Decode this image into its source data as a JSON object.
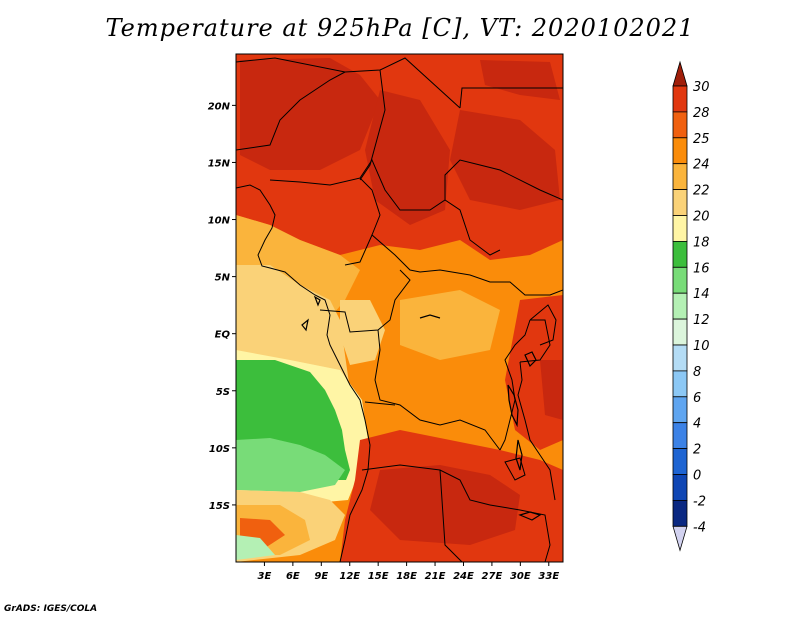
{
  "title": "Temperature at 925hPa [C], VT: 2020102021",
  "credit": "GrADS: IGES/COLA",
  "map": {
    "lon_range": [
      0,
      34.5
    ],
    "lat_range": [
      -20,
      24.5
    ],
    "lon_ticks": [
      {
        "value": 3,
        "label": "3E"
      },
      {
        "value": 6,
        "label": "6E"
      },
      {
        "value": 9,
        "label": "9E"
      },
      {
        "value": 12,
        "label": "12E"
      },
      {
        "value": 15,
        "label": "15E"
      },
      {
        "value": 18,
        "label": "18E"
      },
      {
        "value": 21,
        "label": "21E"
      },
      {
        "value": 24,
        "label": "24E"
      },
      {
        "value": 27,
        "label": "27E"
      },
      {
        "value": 30,
        "label": "30E"
      },
      {
        "value": 33,
        "label": "33E"
      }
    ],
    "lat_ticks": [
      {
        "value": 20,
        "label": "20N"
      },
      {
        "value": 15,
        "label": "15N"
      },
      {
        "value": 10,
        "label": "10N"
      },
      {
        "value": 5,
        "label": "5N"
      },
      {
        "value": 0,
        "label": "EQ"
      },
      {
        "value": -5,
        "label": "5S"
      },
      {
        "value": -10,
        "label": "10S"
      },
      {
        "value": -15,
        "label": "15S"
      }
    ]
  },
  "colorbar": {
    "levels": [
      {
        "label": "30",
        "color": "#c8280f"
      },
      {
        "label": "28",
        "color": "#e1370f"
      },
      {
        "label": "25",
        "color": "#f0600f"
      },
      {
        "label": "24",
        "color": "#fa8c0a"
      },
      {
        "label": "22",
        "color": "#fab43c"
      },
      {
        "label": "20",
        "color": "#fad278"
      },
      {
        "label": "18",
        "color": "#fff5a5"
      },
      {
        "label": "16",
        "color": "#3cbe3c"
      },
      {
        "label": "14",
        "color": "#78dc78"
      },
      {
        "label": "12",
        "color": "#b4f0b4"
      },
      {
        "label": "10",
        "color": "#dcf5dc"
      },
      {
        "label": "8",
        "color": "#b4dcf5"
      },
      {
        "label": "6",
        "color": "#8cc8f5"
      },
      {
        "label": "4",
        "color": "#5fa5f0"
      },
      {
        "label": "2",
        "color": "#3c82e6"
      },
      {
        "label": "0",
        "color": "#1e64d2"
      },
      {
        "label": "-2",
        "color": "#0f46b4"
      },
      {
        "label": "-4",
        "color": "#0a2882"
      }
    ],
    "top_arrow_color": "#a01e0a",
    "bottom_arrow_color": "#d2d2f0"
  }
}
